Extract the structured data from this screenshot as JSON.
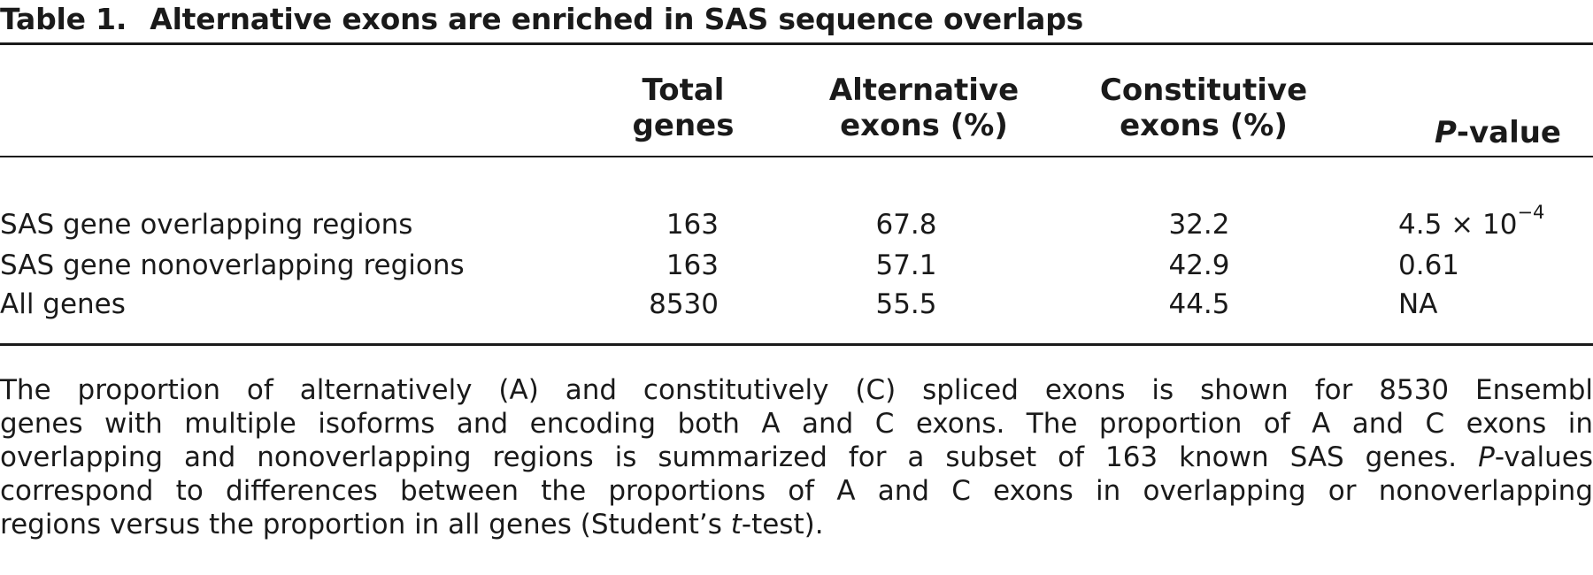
{
  "title": {
    "number": "Table 1.",
    "text": "Alternative exons are enriched in SAS sequence overlaps"
  },
  "columns": {
    "total": [
      "Total",
      "genes"
    ],
    "alternative": [
      "Alternative",
      "exons (%)"
    ],
    "constitutive": [
      "Constitutive",
      "exons (%)"
    ],
    "pvalue": {
      "italic": "P",
      "rest": "-value"
    }
  },
  "rows": [
    {
      "label": "SAS gene overlapping regions",
      "total": "163",
      "alternative": "67.8",
      "constitutive": "32.2",
      "pvalue": "4.5 × 10",
      "pvalue_exp": "−4"
    },
    {
      "label": "SAS gene nonoverlapping regions",
      "total": "163",
      "alternative": "57.1",
      "constitutive": "42.9",
      "pvalue": "0.61",
      "pvalue_exp": ""
    },
    {
      "label": "All genes",
      "total": "8530",
      "alternative": "55.5",
      "constitutive": "44.5",
      "pvalue": "NA",
      "pvalue_exp": ""
    }
  ],
  "footnote": {
    "line1": "The proportion of alternatively (A) and constitutively (C) spliced exons is shown for 8530 Ensembl",
    "line2": "genes with multiple isoforms and encoding both A and C exons. The proportion of A and C exons in",
    "line3": "overlapping and nonoverlapping regions is summarized for a subset of 163 known SAS genes.",
    "line3_italic": "P",
    "line3_end": "-values",
    "line4": "correspond to differences between the proportions of A and C exons in overlapping or nonoverlapping",
    "line5_start": "regions versus the proportion in all genes (Student’s",
    "line5_italic": "t",
    "line5_end": "-test)."
  }
}
